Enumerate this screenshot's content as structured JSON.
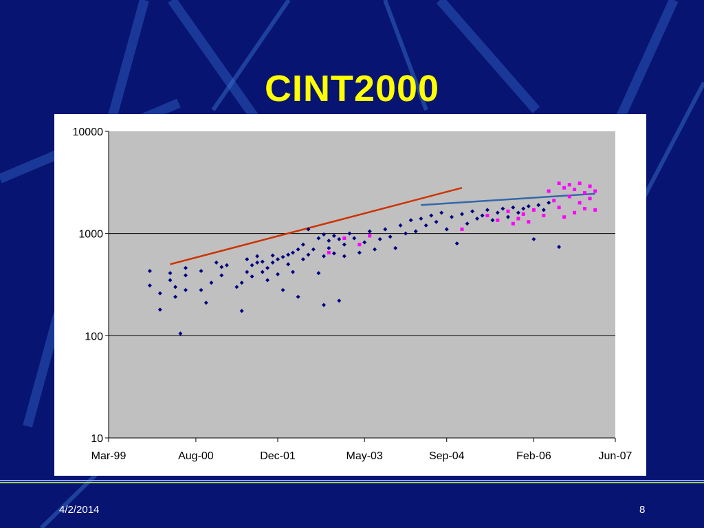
{
  "slide": {
    "title": "CINT2000",
    "date": "4/2/2014",
    "page_number": "8"
  },
  "colors": {
    "background": "#071472",
    "title": "#ffff00",
    "plot_area": "#c0c0c0",
    "series_main": "#000080",
    "series_highlight": "#ff00ff",
    "trend_early": "#cc3300",
    "trend_late": "#3366aa"
  },
  "chart_data": {
    "type": "scatter",
    "title": "",
    "xlabel": "",
    "ylabel": "",
    "y_scale": "log",
    "ylim": [
      10,
      10000
    ],
    "y_ticks": [
      {
        "value": 10,
        "label": "10"
      },
      {
        "value": 100,
        "label": "100"
      },
      {
        "value": 1000,
        "label": "1000"
      },
      {
        "value": 10000,
        "label": "10000"
      }
    ],
    "xlim": [
      "1999-03-01",
      "2007-06-01"
    ],
    "x_ticks": [
      {
        "date": "1999-03-01",
        "label": "Mar-99"
      },
      {
        "date": "2000-08-01",
        "label": "Aug-00"
      },
      {
        "date": "2001-12-01",
        "label": "Dec-01"
      },
      {
        "date": "2003-05-01",
        "label": "May-03"
      },
      {
        "date": "2004-09-01",
        "label": "Sep-04"
      },
      {
        "date": "2006-02-01",
        "label": "Feb-06"
      },
      {
        "date": "2007-06-01",
        "label": "Jun-07"
      }
    ],
    "grid": "horizontal major gridlines",
    "series": [
      {
        "color": "#000080",
        "marker": "diamond",
        "points": [
          {
            "x": "1999-11-01",
            "y": 430
          },
          {
            "x": "1999-11-01",
            "y": 310
          },
          {
            "x": "2000-01-01",
            "y": 260
          },
          {
            "x": "2000-01-01",
            "y": 180
          },
          {
            "x": "2000-03-01",
            "y": 350
          },
          {
            "x": "2000-03-01",
            "y": 410
          },
          {
            "x": "2000-04-01",
            "y": 240
          },
          {
            "x": "2000-04-01",
            "y": 300
          },
          {
            "x": "2000-05-01",
            "y": 105
          },
          {
            "x": "2000-06-01",
            "y": 460
          },
          {
            "x": "2000-06-01",
            "y": 390
          },
          {
            "x": "2000-06-01",
            "y": 280
          },
          {
            "x": "2000-09-01",
            "y": 430
          },
          {
            "x": "2000-09-01",
            "y": 280
          },
          {
            "x": "2000-10-01",
            "y": 210
          },
          {
            "x": "2000-11-01",
            "y": 330
          },
          {
            "x": "2000-12-01",
            "y": 520
          },
          {
            "x": "2001-01-01",
            "y": 470
          },
          {
            "x": "2001-01-01",
            "y": 390
          },
          {
            "x": "2001-02-01",
            "y": 490
          },
          {
            "x": "2001-04-01",
            "y": 300
          },
          {
            "x": "2001-05-01",
            "y": 330
          },
          {
            "x": "2001-05-01",
            "y": 175
          },
          {
            "x": "2001-06-01",
            "y": 420
          },
          {
            "x": "2001-06-01",
            "y": 560
          },
          {
            "x": "2001-07-01",
            "y": 380
          },
          {
            "x": "2001-07-01",
            "y": 490
          },
          {
            "x": "2001-08-01",
            "y": 520
          },
          {
            "x": "2001-08-01",
            "y": 600
          },
          {
            "x": "2001-09-01",
            "y": 420
          },
          {
            "x": "2001-09-01",
            "y": 530
          },
          {
            "x": "2001-10-01",
            "y": 460
          },
          {
            "x": "2001-10-01",
            "y": 350
          },
          {
            "x": "2001-11-01",
            "y": 610
          },
          {
            "x": "2001-11-01",
            "y": 520
          },
          {
            "x": "2001-12-01",
            "y": 400
          },
          {
            "x": "2001-12-01",
            "y": 560
          },
          {
            "x": "2002-01-01",
            "y": 590
          },
          {
            "x": "2002-01-01",
            "y": 280
          },
          {
            "x": "2002-02-01",
            "y": 620
          },
          {
            "x": "2002-02-01",
            "y": 500
          },
          {
            "x": "2002-03-01",
            "y": 650
          },
          {
            "x": "2002-03-01",
            "y": 420
          },
          {
            "x": "2002-04-01",
            "y": 700
          },
          {
            "x": "2002-04-01",
            "y": 240
          },
          {
            "x": "2002-05-01",
            "y": 780
          },
          {
            "x": "2002-05-01",
            "y": 560
          },
          {
            "x": "2002-06-01",
            "y": 1100
          },
          {
            "x": "2002-06-01",
            "y": 620
          },
          {
            "x": "2002-07-01",
            "y": 700
          },
          {
            "x": "2002-08-01",
            "y": 900
          },
          {
            "x": "2002-08-01",
            "y": 410
          },
          {
            "x": "2002-09-01",
            "y": 980
          },
          {
            "x": "2002-09-01",
            "y": 600
          },
          {
            "x": "2002-09-01",
            "y": 200
          },
          {
            "x": "2002-10-01",
            "y": 720
          },
          {
            "x": "2002-10-01",
            "y": 850
          },
          {
            "x": "2002-11-01",
            "y": 950
          },
          {
            "x": "2002-11-01",
            "y": 640
          },
          {
            "x": "2002-12-01",
            "y": 880
          },
          {
            "x": "2002-12-01",
            "y": 220
          },
          {
            "x": "2003-01-01",
            "y": 780
          },
          {
            "x": "2003-01-01",
            "y": 600
          },
          {
            "x": "2003-02-01",
            "y": 1000
          },
          {
            "x": "2003-03-01",
            "y": 900
          },
          {
            "x": "2003-04-01",
            "y": 650
          },
          {
            "x": "2003-05-01",
            "y": 820
          },
          {
            "x": "2003-06-01",
            "y": 1050
          },
          {
            "x": "2003-07-01",
            "y": 700
          },
          {
            "x": "2003-08-01",
            "y": 880
          },
          {
            "x": "2003-09-01",
            "y": 1100
          },
          {
            "x": "2003-10-01",
            "y": 930
          },
          {
            "x": "2003-11-01",
            "y": 720
          },
          {
            "x": "2003-12-01",
            "y": 1200
          },
          {
            "x": "2004-01-01",
            "y": 1000
          },
          {
            "x": "2004-02-01",
            "y": 1350
          },
          {
            "x": "2004-03-01",
            "y": 1050
          },
          {
            "x": "2004-04-01",
            "y": 1400
          },
          {
            "x": "2004-05-01",
            "y": 1200
          },
          {
            "x": "2004-06-01",
            "y": 1500
          },
          {
            "x": "2004-07-01",
            "y": 1300
          },
          {
            "x": "2004-08-01",
            "y": 1600
          },
          {
            "x": "2004-09-01",
            "y": 1100
          },
          {
            "x": "2004-10-01",
            "y": 1450
          },
          {
            "x": "2004-11-01",
            "y": 800
          },
          {
            "x": "2004-12-01",
            "y": 1550
          },
          {
            "x": "2005-01-01",
            "y": 1250
          },
          {
            "x": "2005-02-01",
            "y": 1650
          },
          {
            "x": "2005-03-01",
            "y": 1400
          },
          {
            "x": "2005-04-01",
            "y": 1500
          },
          {
            "x": "2005-05-01",
            "y": 1700
          },
          {
            "x": "2005-06-01",
            "y": 1350
          },
          {
            "x": "2005-07-01",
            "y": 1600
          },
          {
            "x": "2005-08-01",
            "y": 1750
          },
          {
            "x": "2005-09-01",
            "y": 1450
          },
          {
            "x": "2005-10-01",
            "y": 1800
          },
          {
            "x": "2005-11-01",
            "y": 1600
          },
          {
            "x": "2005-12-01",
            "y": 1750
          },
          {
            "x": "2006-01-01",
            "y": 1850
          },
          {
            "x": "2006-02-01",
            "y": 880
          },
          {
            "x": "2006-03-01",
            "y": 1900
          },
          {
            "x": "2006-04-01",
            "y": 1700
          },
          {
            "x": "2006-05-01",
            "y": 2000
          },
          {
            "x": "2006-07-01",
            "y": 740
          }
        ]
      },
      {
        "color": "#ff00ff",
        "marker": "square",
        "points": [
          {
            "x": "2002-10-01",
            "y": 650
          },
          {
            "x": "2003-01-01",
            "y": 900
          },
          {
            "x": "2003-04-01",
            "y": 780
          },
          {
            "x": "2003-06-01",
            "y": 950
          },
          {
            "x": "2004-12-01",
            "y": 1100
          },
          {
            "x": "2005-05-01",
            "y": 1500
          },
          {
            "x": "2005-07-01",
            "y": 1350
          },
          {
            "x": "2005-09-01",
            "y": 1650
          },
          {
            "x": "2005-10-01",
            "y": 1250
          },
          {
            "x": "2005-11-01",
            "y": 1400
          },
          {
            "x": "2005-12-01",
            "y": 1550
          },
          {
            "x": "2006-01-01",
            "y": 1300
          },
          {
            "x": "2006-02-01",
            "y": 1700
          },
          {
            "x": "2006-04-01",
            "y": 1500
          },
          {
            "x": "2006-05-01",
            "y": 2600
          },
          {
            "x": "2006-06-01",
            "y": 2100
          },
          {
            "x": "2006-07-01",
            "y": 3100
          },
          {
            "x": "2006-07-01",
            "y": 1800
          },
          {
            "x": "2006-08-01",
            "y": 2800
          },
          {
            "x": "2006-08-01",
            "y": 1450
          },
          {
            "x": "2006-09-01",
            "y": 3000
          },
          {
            "x": "2006-09-01",
            "y": 2300
          },
          {
            "x": "2006-10-01",
            "y": 2700
          },
          {
            "x": "2006-10-01",
            "y": 1600
          },
          {
            "x": "2006-11-01",
            "y": 3100
          },
          {
            "x": "2006-11-01",
            "y": 2000
          },
          {
            "x": "2006-12-01",
            "y": 2500
          },
          {
            "x": "2006-12-01",
            "y": 1750
          },
          {
            "x": "2007-01-01",
            "y": 2900
          },
          {
            "x": "2007-01-01",
            "y": 2200
          },
          {
            "x": "2007-02-01",
            "y": 2600
          },
          {
            "x": "2007-02-01",
            "y": 1700
          }
        ]
      }
    ],
    "trendlines": [
      {
        "color": "#cc3300",
        "from": {
          "x": "2000-03-01",
          "y": 500
        },
        "to": {
          "x": "2004-12-01",
          "y": 2800
        }
      },
      {
        "color": "#3366aa",
        "from": {
          "x": "2004-04-01",
          "y": 1900
        },
        "to": {
          "x": "2007-02-01",
          "y": 2450
        }
      }
    ]
  }
}
